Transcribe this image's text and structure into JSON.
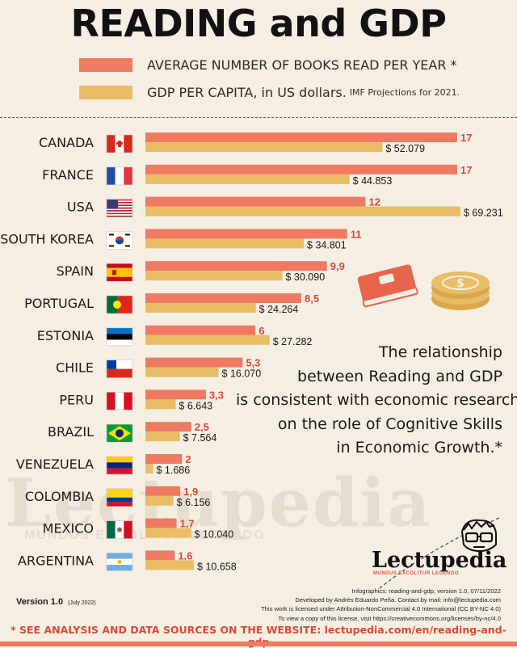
{
  "title": "READING and GDP",
  "legend": {
    "books_label": "AVERAGE NUMBER OF BOOKS READ PER YEAR *",
    "gdp_label": "GDP PER CAPITA, in US dollars.",
    "gdp_note": "IMF Projections for 2021."
  },
  "colors": {
    "books": "#ee7a62",
    "gdp": "#e8bd66",
    "value_text": "#d94a34",
    "background": "#f4eee3"
  },
  "chart_data": {
    "type": "bar",
    "categories": [
      "CANADA",
      "FRANCE",
      "USA",
      "SOUTH KOREA",
      "SPAIN",
      "PORTUGAL",
      "ESTONIA",
      "CHILE",
      "PERU",
      "BRAZIL",
      "VENEZUELA",
      "COLOMBIA",
      "MEXICO",
      "ARGENTINA"
    ],
    "series": [
      {
        "name": "AVERAGE NUMBER OF BOOKS READ PER YEAR *",
        "values": [
          17,
          17,
          12,
          11,
          9.9,
          8.5,
          6,
          5.3,
          3.3,
          2.5,
          2,
          1.9,
          1.7,
          1.6
        ],
        "labels": [
          "17",
          "17",
          "12",
          "11",
          "9,9",
          "8,5",
          "6",
          "5,3",
          "3,3",
          "2,5",
          "2",
          "1,9",
          "1,7",
          "1,6"
        ]
      },
      {
        "name": "GDP PER CAPITA, in US dollars.",
        "values": [
          52079,
          44853,
          69231,
          34801,
          30090,
          24264,
          27282,
          16070,
          6643,
          7564,
          1686,
          6156,
          10040,
          10658
        ],
        "labels": [
          "$ 52.079",
          "$ 44.853",
          "$ 69.231",
          "$ 34.801",
          "$ 30.090",
          "$ 24.264",
          "$ 27.282",
          "$ 16.070",
          "$ 6.643",
          "$ 7.564",
          "$ 1.686",
          "$ 6.156",
          "$ 10.040",
          "$ 10.658"
        ]
      }
    ],
    "flag_icons": [
      "canada-flag-icon",
      "france-flag-icon",
      "usa-flag-icon",
      "south-korea-flag-icon",
      "spain-flag-icon",
      "portugal-flag-icon",
      "estonia-flag-icon",
      "chile-flag-icon",
      "peru-flag-icon",
      "brazil-flag-icon",
      "venezuela-flag-icon",
      "colombia-flag-icon",
      "mexico-flag-icon",
      "argentina-flag-icon"
    ]
  },
  "statement_lines": [
    "The relationship",
    "between Reading and GDP",
    "is consistent with economic research",
    "on the role of Cognitive Skills",
    "in Economic Growth.*"
  ],
  "watermark": "Lectupedia",
  "watermark_sub": "MUNDUS EXCOLITUR LEGENDO",
  "logo": {
    "name": "Lectupedia",
    "tagline": "MUNDUS EXCOLITUR LEGENDO"
  },
  "icons": [
    "book-icon",
    "coins-icon",
    "reader-glasses-icon"
  ],
  "credits": [
    "Infographics: reading-and-gdp, version 1.0, 07/11/2022",
    "Developed by Andrés Eduardo Peña. Contact by mail: info@lectupedia.com",
    "This work is licensed under Attribution-NonCommercial 4.0 International (CC BY-NC 4.0)",
    "To view a copy of this license, visit https://creativecommons.org/licenses/by-nc/4.0"
  ],
  "version": {
    "label": "Version 1.0",
    "date": "(July 2022)"
  },
  "footer": "* SEE ANALYSIS AND DATA SOURCES ON THE WEBSITE:  lectupedia.com/en/reading-and-gdp"
}
